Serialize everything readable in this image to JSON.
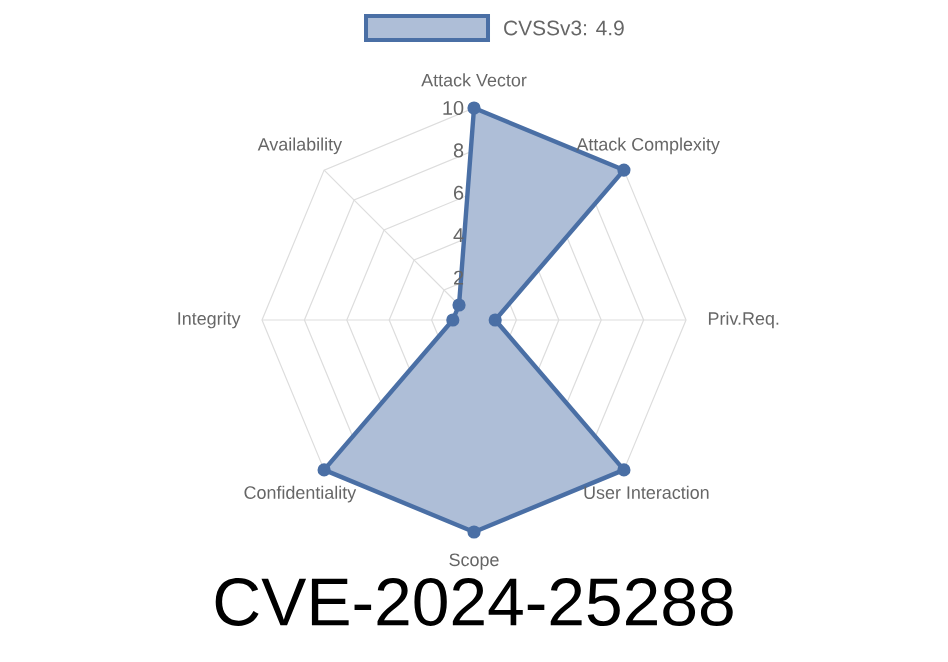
{
  "chart_data": {
    "type": "radar",
    "title": "CVE-2024-25288",
    "categories": [
      "Attack Vector",
      "Attack Complexity",
      "Priv.Req.",
      "User Interaction",
      "Scope",
      "Confidentiality",
      "Integrity",
      "Availability"
    ],
    "series": [
      {
        "name": "CVSSv3: 4.9",
        "color": "#4a6fa5",
        "values": [
          10,
          10,
          1,
          10,
          10,
          10,
          1,
          1
        ]
      }
    ],
    "ylim": [
      0,
      10
    ],
    "yticks": [
      2,
      4,
      6,
      8,
      10
    ],
    "grid": true,
    "legend": "top",
    "marker": "circle",
    "line_style": "solid"
  }
}
